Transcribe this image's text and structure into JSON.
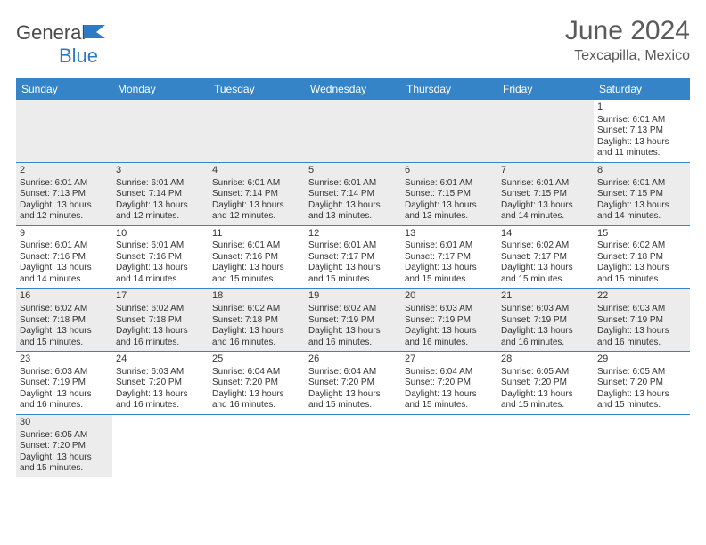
{
  "brand": {
    "general": "General",
    "blue": "Blue"
  },
  "title": {
    "month": "June 2024",
    "location": "Texcapilla, Mexico"
  },
  "dayHeaders": [
    "Sunday",
    "Monday",
    "Tuesday",
    "Wednesday",
    "Thursday",
    "Friday",
    "Saturday"
  ],
  "colors": {
    "headerBg": "#3584c7",
    "headerText": "#ffffff",
    "rowBorder": "#3584c7",
    "shadedBg": "#ececec",
    "brandBlue": "#2d7bc4"
  },
  "weeks": [
    [
      {
        "empty": true,
        "shaded": true
      },
      {
        "empty": true,
        "shaded": true
      },
      {
        "empty": true,
        "shaded": true
      },
      {
        "empty": true,
        "shaded": true
      },
      {
        "empty": true,
        "shaded": true
      },
      {
        "empty": true,
        "shaded": true
      },
      {
        "day": "1",
        "sunrise": "Sunrise: 6:01 AM",
        "sunset": "Sunset: 7:13 PM",
        "daylight1": "Daylight: 13 hours",
        "daylight2": "and 11 minutes."
      }
    ],
    [
      {
        "day": "2",
        "shaded": true,
        "sunrise": "Sunrise: 6:01 AM",
        "sunset": "Sunset: 7:13 PM",
        "daylight1": "Daylight: 13 hours",
        "daylight2": "and 12 minutes."
      },
      {
        "day": "3",
        "shaded": true,
        "sunrise": "Sunrise: 6:01 AM",
        "sunset": "Sunset: 7:14 PM",
        "daylight1": "Daylight: 13 hours",
        "daylight2": "and 12 minutes."
      },
      {
        "day": "4",
        "shaded": true,
        "sunrise": "Sunrise: 6:01 AM",
        "sunset": "Sunset: 7:14 PM",
        "daylight1": "Daylight: 13 hours",
        "daylight2": "and 12 minutes."
      },
      {
        "day": "5",
        "shaded": true,
        "sunrise": "Sunrise: 6:01 AM",
        "sunset": "Sunset: 7:14 PM",
        "daylight1": "Daylight: 13 hours",
        "daylight2": "and 13 minutes."
      },
      {
        "day": "6",
        "shaded": true,
        "sunrise": "Sunrise: 6:01 AM",
        "sunset": "Sunset: 7:15 PM",
        "daylight1": "Daylight: 13 hours",
        "daylight2": "and 13 minutes."
      },
      {
        "day": "7",
        "shaded": true,
        "sunrise": "Sunrise: 6:01 AM",
        "sunset": "Sunset: 7:15 PM",
        "daylight1": "Daylight: 13 hours",
        "daylight2": "and 14 minutes."
      },
      {
        "day": "8",
        "shaded": true,
        "sunrise": "Sunrise: 6:01 AM",
        "sunset": "Sunset: 7:15 PM",
        "daylight1": "Daylight: 13 hours",
        "daylight2": "and 14 minutes."
      }
    ],
    [
      {
        "day": "9",
        "sunrise": "Sunrise: 6:01 AM",
        "sunset": "Sunset: 7:16 PM",
        "daylight1": "Daylight: 13 hours",
        "daylight2": "and 14 minutes."
      },
      {
        "day": "10",
        "sunrise": "Sunrise: 6:01 AM",
        "sunset": "Sunset: 7:16 PM",
        "daylight1": "Daylight: 13 hours",
        "daylight2": "and 14 minutes."
      },
      {
        "day": "11",
        "sunrise": "Sunrise: 6:01 AM",
        "sunset": "Sunset: 7:16 PM",
        "daylight1": "Daylight: 13 hours",
        "daylight2": "and 15 minutes."
      },
      {
        "day": "12",
        "sunrise": "Sunrise: 6:01 AM",
        "sunset": "Sunset: 7:17 PM",
        "daylight1": "Daylight: 13 hours",
        "daylight2": "and 15 minutes."
      },
      {
        "day": "13",
        "sunrise": "Sunrise: 6:01 AM",
        "sunset": "Sunset: 7:17 PM",
        "daylight1": "Daylight: 13 hours",
        "daylight2": "and 15 minutes."
      },
      {
        "day": "14",
        "sunrise": "Sunrise: 6:02 AM",
        "sunset": "Sunset: 7:17 PM",
        "daylight1": "Daylight: 13 hours",
        "daylight2": "and 15 minutes."
      },
      {
        "day": "15",
        "sunrise": "Sunrise: 6:02 AM",
        "sunset": "Sunset: 7:18 PM",
        "daylight1": "Daylight: 13 hours",
        "daylight2": "and 15 minutes."
      }
    ],
    [
      {
        "day": "16",
        "shaded": true,
        "sunrise": "Sunrise: 6:02 AM",
        "sunset": "Sunset: 7:18 PM",
        "daylight1": "Daylight: 13 hours",
        "daylight2": "and 15 minutes."
      },
      {
        "day": "17",
        "shaded": true,
        "sunrise": "Sunrise: 6:02 AM",
        "sunset": "Sunset: 7:18 PM",
        "daylight1": "Daylight: 13 hours",
        "daylight2": "and 16 minutes."
      },
      {
        "day": "18",
        "shaded": true,
        "sunrise": "Sunrise: 6:02 AM",
        "sunset": "Sunset: 7:18 PM",
        "daylight1": "Daylight: 13 hours",
        "daylight2": "and 16 minutes."
      },
      {
        "day": "19",
        "shaded": true,
        "sunrise": "Sunrise: 6:02 AM",
        "sunset": "Sunset: 7:19 PM",
        "daylight1": "Daylight: 13 hours",
        "daylight2": "and 16 minutes."
      },
      {
        "day": "20",
        "shaded": true,
        "sunrise": "Sunrise: 6:03 AM",
        "sunset": "Sunset: 7:19 PM",
        "daylight1": "Daylight: 13 hours",
        "daylight2": "and 16 minutes."
      },
      {
        "day": "21",
        "shaded": true,
        "sunrise": "Sunrise: 6:03 AM",
        "sunset": "Sunset: 7:19 PM",
        "daylight1": "Daylight: 13 hours",
        "daylight2": "and 16 minutes."
      },
      {
        "day": "22",
        "shaded": true,
        "sunrise": "Sunrise: 6:03 AM",
        "sunset": "Sunset: 7:19 PM",
        "daylight1": "Daylight: 13 hours",
        "daylight2": "and 16 minutes."
      }
    ],
    [
      {
        "day": "23",
        "sunrise": "Sunrise: 6:03 AM",
        "sunset": "Sunset: 7:19 PM",
        "daylight1": "Daylight: 13 hours",
        "daylight2": "and 16 minutes."
      },
      {
        "day": "24",
        "sunrise": "Sunrise: 6:03 AM",
        "sunset": "Sunset: 7:20 PM",
        "daylight1": "Daylight: 13 hours",
        "daylight2": "and 16 minutes."
      },
      {
        "day": "25",
        "sunrise": "Sunrise: 6:04 AM",
        "sunset": "Sunset: 7:20 PM",
        "daylight1": "Daylight: 13 hours",
        "daylight2": "and 16 minutes."
      },
      {
        "day": "26",
        "sunrise": "Sunrise: 6:04 AM",
        "sunset": "Sunset: 7:20 PM",
        "daylight1": "Daylight: 13 hours",
        "daylight2": "and 15 minutes."
      },
      {
        "day": "27",
        "sunrise": "Sunrise: 6:04 AM",
        "sunset": "Sunset: 7:20 PM",
        "daylight1": "Daylight: 13 hours",
        "daylight2": "and 15 minutes."
      },
      {
        "day": "28",
        "sunrise": "Sunrise: 6:05 AM",
        "sunset": "Sunset: 7:20 PM",
        "daylight1": "Daylight: 13 hours",
        "daylight2": "and 15 minutes."
      },
      {
        "day": "29",
        "sunrise": "Sunrise: 6:05 AM",
        "sunset": "Sunset: 7:20 PM",
        "daylight1": "Daylight: 13 hours",
        "daylight2": "and 15 minutes."
      }
    ],
    [
      {
        "day": "30",
        "shaded": true,
        "sunrise": "Sunrise: 6:05 AM",
        "sunset": "Sunset: 7:20 PM",
        "daylight1": "Daylight: 13 hours",
        "daylight2": "and 15 minutes."
      },
      {
        "empty": true
      },
      {
        "empty": true
      },
      {
        "empty": true
      },
      {
        "empty": true
      },
      {
        "empty": true
      },
      {
        "empty": true
      }
    ]
  ]
}
